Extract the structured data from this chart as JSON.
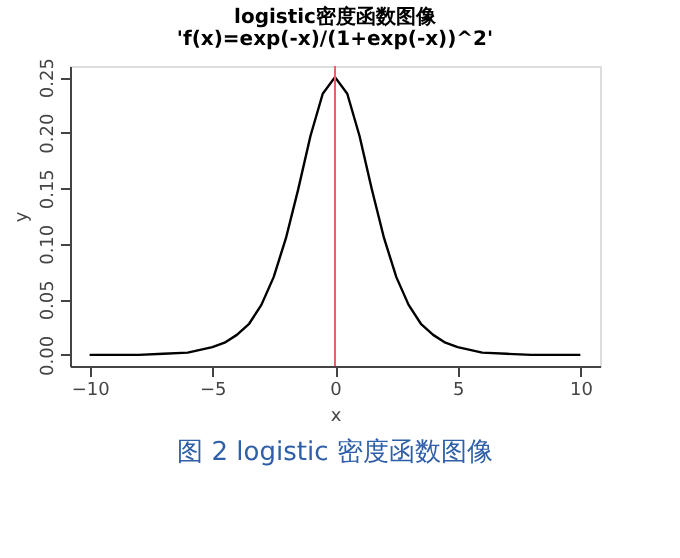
{
  "chart_data": {
    "type": "line",
    "title": "logistic密度函数图像",
    "subtitle": "'f(x)=exp(-x)/(1+exp(-x))^2'",
    "xlabel": "x",
    "ylabel": "y",
    "x": [
      -10,
      -9,
      -8,
      -7,
      -6,
      -5,
      -4.5,
      -4,
      -3.5,
      -3,
      -2.5,
      -2,
      -1.5,
      -1,
      -0.5,
      0,
      0.5,
      1,
      1.5,
      2,
      2.5,
      3,
      3.5,
      4,
      4.5,
      5,
      6,
      7,
      8,
      9,
      10
    ],
    "series": [
      {
        "color": "#000000",
        "values": [
          0.0,
          0.0,
          0.0,
          0.001,
          0.002,
          0.007,
          0.011,
          0.018,
          0.028,
          0.045,
          0.07,
          0.105,
          0.149,
          0.197,
          0.235,
          0.25,
          0.235,
          0.197,
          0.149,
          0.105,
          0.07,
          0.045,
          0.028,
          0.018,
          0.011,
          0.007,
          0.002,
          0.001,
          0.0,
          0.0,
          0.0
        ]
      }
    ],
    "xlim": [
      -10.8,
      10.8
    ],
    "ylim": [
      -0.01,
      0.26
    ],
    "xticks": [
      -10,
      -5,
      0,
      5,
      10
    ],
    "yticks": [
      {
        "value": 0,
        "label": "0.00"
      },
      {
        "value": 0.05,
        "label": "0.05"
      },
      {
        "value": 0.1,
        "label": "0.10"
      },
      {
        "value": 0.15,
        "label": "0.15"
      },
      {
        "value": 0.2,
        "label": "0.20"
      },
      {
        "value": 0.25,
        "label": "0.25"
      }
    ],
    "ref_lines": [
      {
        "axis": "x",
        "value": 0,
        "color": "#e06666"
      }
    ],
    "grid": false,
    "annotations": [
      "图 2   logistic 密度函数图像"
    ]
  }
}
